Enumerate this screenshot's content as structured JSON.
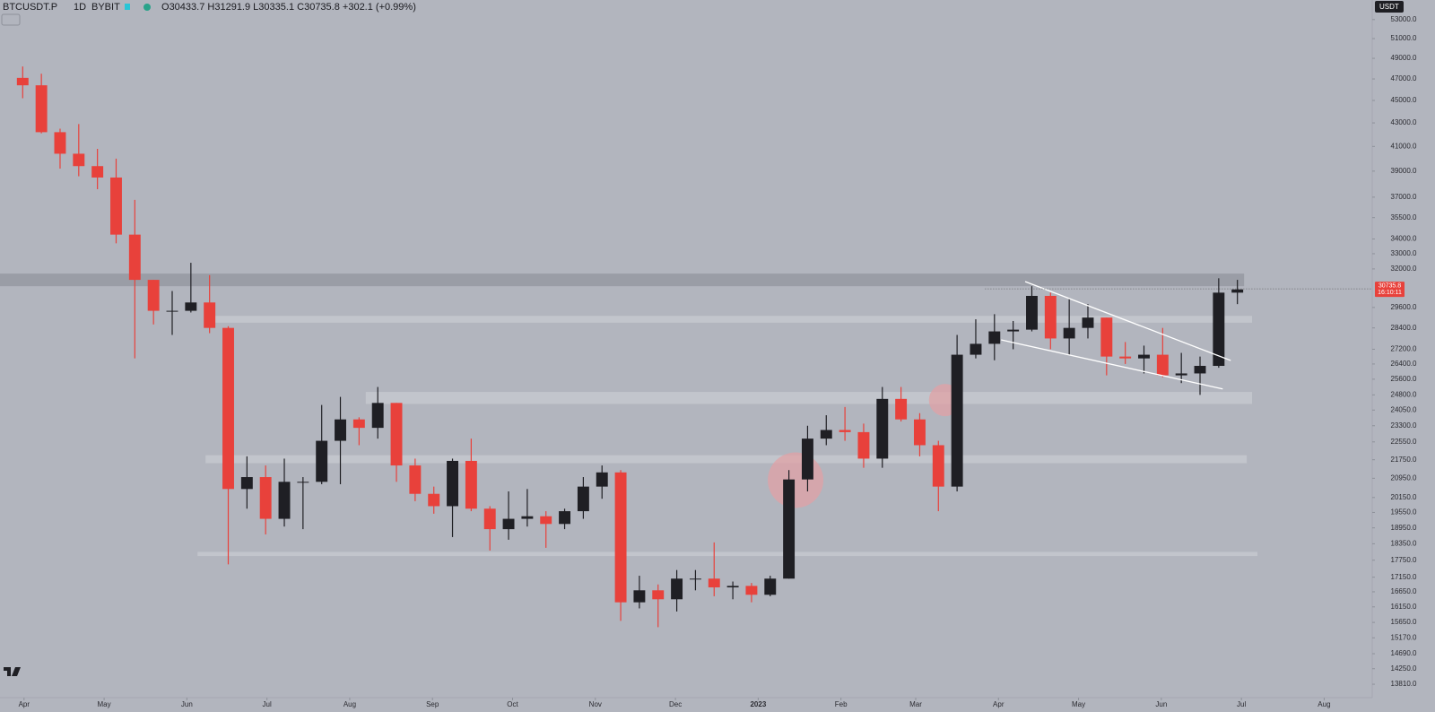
{
  "chart_data": {
    "type": "candlestick",
    "symbol": "BTCUSDT.P",
    "interval": "1D",
    "exchange": "BYBIT",
    "ohlc": [
      {
        "label": "O",
        "value": 30433.7
      },
      {
        "label": "H",
        "value": 31291.9
      },
      {
        "label": "L",
        "value": 30335.1
      },
      {
        "label": "C",
        "value": 30735.8
      }
    ],
    "change": "+302.1 (+0.99%)",
    "currency": "USDT",
    "last_price": {
      "value": 30735.8,
      "countdown": "16:10:11"
    },
    "up_color": "#1f1f24",
    "down_color": "#e8413b",
    "background": "#b2b5be",
    "log_scale": true,
    "grid": false,
    "x": [
      "2022-03-28",
      "2022-04-04",
      "2022-04-11",
      "2022-04-18",
      "2022-04-25",
      "2022-05-02",
      "2022-05-09",
      "2022-05-16",
      "2022-05-23",
      "2022-05-30",
      "2022-06-06",
      "2022-06-13",
      "2022-06-20",
      "2022-06-27",
      "2022-07-04",
      "2022-07-11",
      "2022-07-18",
      "2022-07-25",
      "2022-08-01",
      "2022-08-08",
      "2022-08-15",
      "2022-08-22",
      "2022-08-29",
      "2022-09-05",
      "2022-09-12",
      "2022-09-19",
      "2022-09-26",
      "2022-10-03",
      "2022-10-10",
      "2022-10-17",
      "2022-10-24",
      "2022-10-31",
      "2022-11-07",
      "2022-11-14",
      "2022-11-21",
      "2022-11-28",
      "2022-12-05",
      "2022-12-12",
      "2022-12-19",
      "2022-12-26",
      "2023-01-02",
      "2023-01-09",
      "2023-01-16",
      "2023-01-23",
      "2023-01-30",
      "2023-02-06",
      "2023-02-13",
      "2023-02-20",
      "2023-02-27",
      "2023-03-06",
      "2023-03-13",
      "2023-03-20",
      "2023-03-27",
      "2023-04-03",
      "2023-04-10",
      "2023-04-17",
      "2023-04-24",
      "2023-05-01",
      "2023-05-08",
      "2023-05-15",
      "2023-05-22",
      "2023-05-29",
      "2023-06-05",
      "2023-06-12",
      "2023-06-19",
      "2023-06-26"
    ],
    "open": [
      47100,
      46400,
      42200,
      40400,
      39400,
      38500,
      34300,
      31300,
      29400,
      29400,
      29900,
      28400,
      20500,
      21000,
      19300,
      20800,
      20800,
      22600,
      23600,
      23200,
      24400,
      21500,
      20300,
      19800,
      21700,
      19700,
      18900,
      19300,
      19400,
      19100,
      19600,
      20600,
      21200,
      16300,
      16700,
      16400,
      17100,
      17100,
      16800,
      16850,
      16550,
      17100,
      20900,
      22700,
      23100,
      23000,
      21800,
      24600,
      23600,
      22400,
      20600,
      26900,
      27500,
      28200,
      28300,
      30300,
      27800,
      28400,
      29000,
      26800,
      26700,
      26900,
      25800,
      25900,
      26300,
      30500
    ],
    "high": [
      48200,
      47500,
      42500,
      42900,
      40800,
      40000,
      36800,
      31300,
      30600,
      32400,
      31600,
      28500,
      21900,
      21500,
      21800,
      21000,
      24300,
      24700,
      23700,
      25200,
      24400,
      21800,
      20600,
      21800,
      22700,
      19800,
      20400,
      20500,
      19600,
      19700,
      21000,
      21500,
      21300,
      17200,
      16900,
      17400,
      17400,
      18400,
      17000,
      16950,
      17200,
      21300,
      23300,
      23800,
      24200,
      23400,
      25200,
      25200,
      23900,
      22600,
      28000,
      28900,
      29200,
      28800,
      30900,
      30500,
      30100,
      29800,
      29000,
      27600,
      27400,
      28400,
      27000,
      26800,
      31400,
      31300
    ],
    "low": [
      45200,
      42100,
      39200,
      38600,
      37600,
      33700,
      26700,
      28600,
      28000,
      29300,
      28100,
      17600,
      19700,
      18700,
      19000,
      18900,
      20700,
      20700,
      22400,
      22700,
      20800,
      20000,
      19500,
      18600,
      19600,
      18100,
      18500,
      19000,
      18200,
      18900,
      19300,
      20100,
      15700,
      16100,
      15500,
      16000,
      16700,
      16500,
      16400,
      16300,
      16500,
      17100,
      20400,
      22400,
      22600,
      21400,
      21400,
      23500,
      21900,
      19600,
      20400,
      26700,
      26600,
      27200,
      28200,
      27200,
      26900,
      27800,
      25800,
      26400,
      25900,
      25700,
      25400,
      24800,
      26200,
      29800
    ],
    "close": [
      46400,
      42200,
      40400,
      39400,
      38500,
      34300,
      31300,
      29400,
      29400,
      29900,
      28400,
      20500,
      21000,
      19300,
      20800,
      20800,
      22600,
      23600,
      23200,
      24400,
      21500,
      20300,
      19800,
      21700,
      19700,
      18900,
      19300,
      19400,
      19100,
      19600,
      20600,
      21200,
      16300,
      16700,
      16400,
      17100,
      17100,
      16800,
      16850,
      16550,
      17100,
      20900,
      22700,
      23100,
      23000,
      21800,
      24600,
      23600,
      22400,
      20600,
      26900,
      27500,
      28200,
      28300,
      30300,
      27800,
      28400,
      29000,
      26800,
      26700,
      26900,
      25800,
      25900,
      26300,
      30500,
      30700
    ],
    "xlim": [
      "2022-03-23",
      "2023-08-19"
    ],
    "ylim": [
      13440,
      55140
    ],
    "xticks": [
      {
        "value": "2022-04-01",
        "label": "Apr"
      },
      {
        "value": "2022-05-01",
        "label": "May"
      },
      {
        "value": "2022-06-01",
        "label": "Jun"
      },
      {
        "value": "2022-07-01",
        "label": "Jul"
      },
      {
        "value": "2022-08-01",
        "label": "Aug"
      },
      {
        "value": "2022-09-01",
        "label": "Sep"
      },
      {
        "value": "2022-10-01",
        "label": "Oct"
      },
      {
        "value": "2022-11-01",
        "label": "Nov"
      },
      {
        "value": "2022-12-01",
        "label": "Dec"
      },
      {
        "value": "2023-01-01",
        "label": "2023"
      },
      {
        "value": "2023-02-01",
        "label": "Feb"
      },
      {
        "value": "2023-03-01",
        "label": "Mar"
      },
      {
        "value": "2023-04-01",
        "label": "Apr"
      },
      {
        "value": "2023-05-01",
        "label": "May"
      },
      {
        "value": "2023-06-01",
        "label": "Jun"
      },
      {
        "value": "2023-07-01",
        "label": "Jul"
      },
      {
        "value": "2023-08-01",
        "label": "Aug"
      }
    ],
    "yticks": [
      {
        "value": 53000,
        "label": "53000.0"
      },
      {
        "value": 51000,
        "label": "51000.0"
      },
      {
        "value": 49000,
        "label": "49000.0"
      },
      {
        "value": 47000,
        "label": "47000.0"
      },
      {
        "value": 45000,
        "label": "45000.0"
      },
      {
        "value": 43000,
        "label": "43000.0"
      },
      {
        "value": 41000,
        "label": "41000.0"
      },
      {
        "value": 39000,
        "label": "39000.0"
      },
      {
        "value": 37000,
        "label": "37000.0"
      },
      {
        "value": 35500,
        "label": "35500.0"
      },
      {
        "value": 34000,
        "label": "34000.0"
      },
      {
        "value": 33000,
        "label": "33000.0"
      },
      {
        "value": 32000,
        "label": "32000.0"
      },
      {
        "value": 29600,
        "label": "29600.0"
      },
      {
        "value": 28400,
        "label": "28400.0"
      },
      {
        "value": 27200,
        "label": "27200.0"
      },
      {
        "value": 26400,
        "label": "26400.0"
      },
      {
        "value": 25600,
        "label": "25600.0"
      },
      {
        "value": 24800,
        "label": "24800.0"
      },
      {
        "value": 24050,
        "label": "24050.0"
      },
      {
        "value": 23300,
        "label": "23300.0"
      },
      {
        "value": 22550,
        "label": "22550.0"
      },
      {
        "value": 21750,
        "label": "21750.0"
      },
      {
        "value": 20950,
        "label": "20950.0"
      },
      {
        "value": 20150,
        "label": "20150.0"
      },
      {
        "value": 19550,
        "label": "19550.0"
      },
      {
        "value": 18950,
        "label": "18950.0"
      },
      {
        "value": 18350,
        "label": "18350.0"
      },
      {
        "value": 17750,
        "label": "17750.0"
      },
      {
        "value": 17150,
        "label": "17150.0"
      },
      {
        "value": 16650,
        "label": "16650.0"
      },
      {
        "value": 16150,
        "label": "16150.0"
      },
      {
        "value": 15650,
        "label": "15650.0"
      },
      {
        "value": 15170,
        "label": "15170.0"
      },
      {
        "value": 14690,
        "label": "14690.0"
      },
      {
        "value": 14250,
        "label": "14250.0"
      },
      {
        "value": 13810,
        "label": "13810.0"
      }
    ],
    "zones": [
      {
        "x": [
          "2022-03-23",
          "2023-07-02"
        ],
        "y": [
          30900,
          31700
        ],
        "color": "#9a9da6"
      },
      {
        "x": [
          "2022-06-08",
          "2023-07-05"
        ],
        "y": [
          28700,
          29100
        ],
        "color": "#c2c5cc"
      },
      {
        "x": [
          "2022-08-07",
          "2023-07-05"
        ],
        "y": [
          24350,
          24950
        ],
        "color": "#c2c5cc"
      },
      {
        "x": [
          "2022-06-08",
          "2023-07-03"
        ],
        "y": [
          21600,
          21950
        ],
        "color": "#c2c5cc"
      },
      {
        "x": [
          "2022-06-05",
          "2023-07-07"
        ],
        "y": [
          17900,
          18050
        ],
        "color": "#c2c5cc"
      }
    ],
    "circles": [
      {
        "x": "2023-01-15",
        "y": 20870,
        "color": "#e0a2a6"
      },
      {
        "x": "2023-03-12",
        "y": 24540,
        "color": "#e0a2a6"
      }
    ],
    "trendlines": [
      {
        "x": [
          "2023-04-11",
          "2023-06-27"
        ],
        "y": [
          31190,
          26590
        ]
      },
      {
        "x": [
          "2023-04-02",
          "2023-06-24"
        ],
        "y": [
          27720,
          25100
        ]
      }
    ]
  }
}
